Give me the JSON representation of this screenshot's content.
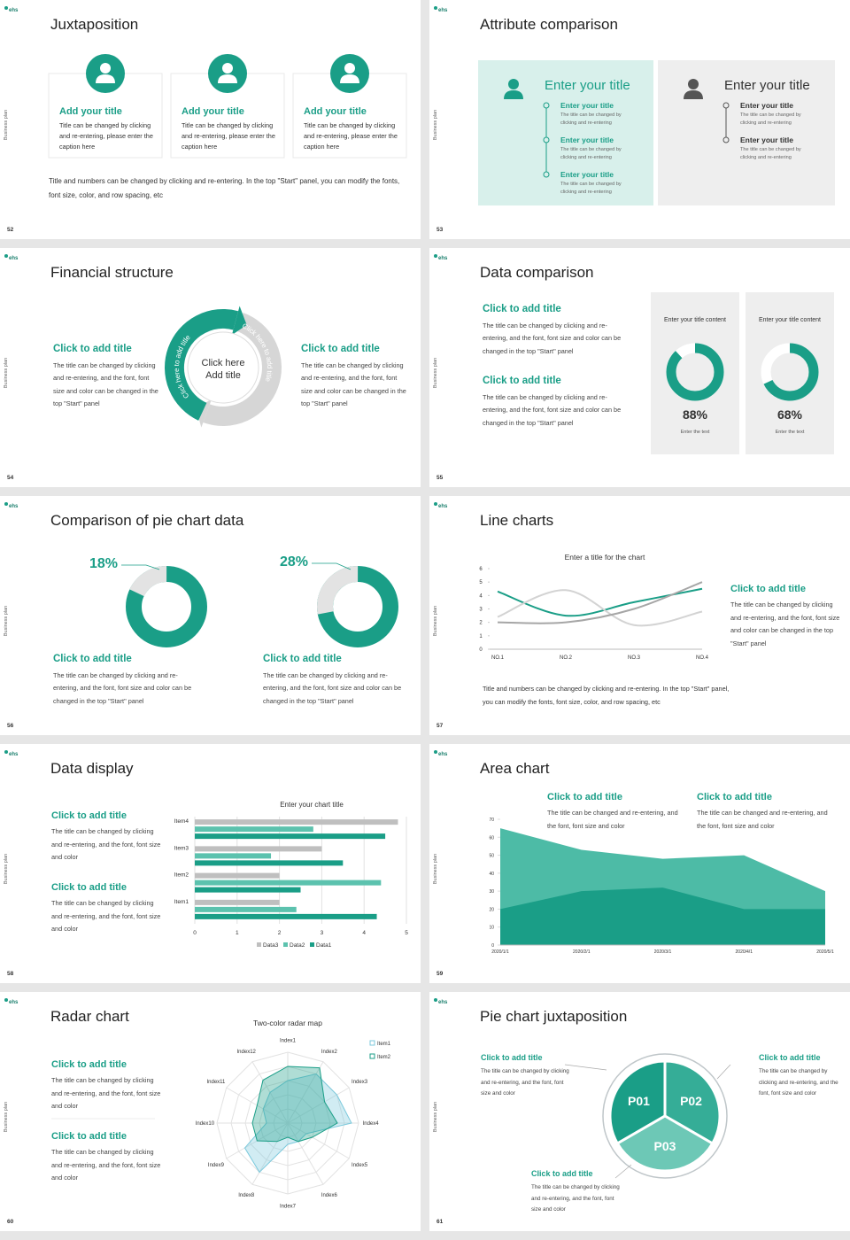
{
  "logo": "ehs",
  "side_label": "Business plan",
  "slides": [
    {
      "page": 52,
      "title": "Juxtaposition",
      "cards": [
        {
          "title": "Add your title",
          "text": "Title can be changed by clicking and re-entering, please enter the caption here"
        },
        {
          "title": "Add your title",
          "text": "Title can be changed by clicking and re-entering, please enter the caption here"
        },
        {
          "title": "Add your title",
          "text": "Title can be changed by clicking and re-entering, please enter the caption here"
        }
      ],
      "note": "Title and numbers can be changed by clicking and re-entering. In the top \"Start\" panel, you can modify the fonts, font size, color, and row spacing, etc"
    },
    {
      "page": 53,
      "title": "Attribute comparison",
      "panels": [
        {
          "title": "Enter your title",
          "items": [
            {
              "title": "Enter your title",
              "text": "The title can be changed by clicking and re-entering"
            },
            {
              "title": "Enter your title",
              "text": "The title can be changed by clicking and re-entering"
            },
            {
              "title": "Enter your title",
              "text": "The title can be changed by clicking and re-entering"
            }
          ]
        },
        {
          "title": "Enter your title",
          "items": [
            {
              "title": "Enter your title",
              "text": "The title can be changed by clicking and re-entering"
            },
            {
              "title": "Enter your title",
              "text": "The title can be changed by clicking and re-entering"
            }
          ]
        }
      ]
    },
    {
      "page": 54,
      "title": "Financial structure",
      "blocks": [
        {
          "title": "Click to add title",
          "text": "The title can be changed by clicking and re-entering, and the font, font size and color can be changed in the top \"Start\" panel"
        },
        {
          "title": "Click to add title",
          "text": "The title can be changed by clicking and re-entering, and the font, font size and color can be changed in the top \"Start\" panel"
        }
      ],
      "center": "Click here Add title",
      "arrow_labels": [
        "Click here to add title",
        "Click here to add title"
      ]
    },
    {
      "page": 55,
      "title": "Data comparison",
      "blocks": [
        {
          "title": "Click to add title",
          "text": "The title can be changed by clicking and re-entering, and the font, font size and color can be changed in the top \"Start\" panel"
        },
        {
          "title": "Click to add title",
          "text": "The title can be changed by clicking and re-entering, and the font, font size and color can be changed in the top \"Start\" panel"
        }
      ],
      "cards": [
        {
          "label": "Enter your title content",
          "value": 88,
          "value_label": "88%",
          "caption": "Enter the text"
        },
        {
          "label": "Enter your title content",
          "value": 68,
          "value_label": "68%",
          "caption": "Enter the text"
        }
      ]
    },
    {
      "page": 56,
      "title": "Comparison of pie chart data",
      "pies": [
        {
          "value": 18,
          "value_label": "18%"
        },
        {
          "value": 28,
          "value_label": "28%"
        }
      ],
      "blocks": [
        {
          "title": "Click to add title",
          "text": "The title can be changed by clicking and re-entering, and the font, font size and color can be changed in the top \"Start\" panel"
        },
        {
          "title": "Click to add title",
          "text": "The title can be changed by clicking and re-entering, and the font, font size and color can be changed in the top \"Start\" panel"
        }
      ]
    },
    {
      "page": 57,
      "title": "Line charts",
      "blocks": [
        {
          "title": "Click to add title",
          "text": "The title can be changed by clicking and re-entering, and the font, font size and color can be changed in the top \"Start\" panel"
        }
      ],
      "note": "Title and numbers can be changed by clicking and re-entering. In the top \"Start\" panel, you can modify the fonts, font size, color, and row spacing, etc"
    },
    {
      "page": 58,
      "title": "Data display",
      "blocks": [
        {
          "title": "Click to add title",
          "text": "The title can be changed by clicking and re-entering, and the font, font size and color"
        },
        {
          "title": "Click to add title",
          "text": "The title can be changed by clicking and re-entering, and the font, font size and color"
        }
      ]
    },
    {
      "page": 59,
      "title": "Area chart",
      "blocks": [
        {
          "title": "Click to add title",
          "text": "The title can be changed and re-entering, and the font, font size and color"
        },
        {
          "title": "Click to add title",
          "text": "The title can be changed and re-entering, and the font, font size and color"
        }
      ]
    },
    {
      "page": 60,
      "title": "Radar chart",
      "blocks": [
        {
          "title": "Click to add title",
          "text": "The title can be changed by clicking and re-entering, and the font, font size and color"
        },
        {
          "title": "Click to add title",
          "text": "The title can be changed by clicking and re-entering, and the font, font size and color"
        }
      ]
    },
    {
      "page": 61,
      "title": "Pie chart juxtaposition",
      "segments": [
        "P01",
        "P02",
        "P03"
      ],
      "blocks": [
        {
          "title": "Click to add title",
          "text": "The title can be changed by clicking and re-entering, and the font, font size and color"
        },
        {
          "title": "Click to add title",
          "text": "The title can be changed by clicking and re-entering, and the font, font size and color"
        },
        {
          "title": "Click to add title",
          "text": "The title can be changed by clicking and re-entering, and the font, font size and color"
        }
      ]
    }
  ],
  "chart_data": [
    {
      "type": "line",
      "title": "Enter a title for the chart",
      "categories": [
        "NO.1",
        "NO.2",
        "NO.3",
        "NO.4"
      ],
      "ylim": [
        0,
        6
      ],
      "yticks": [
        0,
        1,
        2,
        3,
        4,
        5,
        6
      ],
      "series": [
        {
          "color": "#1a9e87",
          "values": [
            4.3,
            2.5,
            3.5,
            4.5
          ]
        },
        {
          "color": "#d3d3d3",
          "values": [
            2.4,
            4.4,
            1.8,
            2.8
          ]
        },
        {
          "color": "#a6a6a6",
          "values": [
            2,
            2,
            3,
            5
          ]
        }
      ]
    },
    {
      "type": "bar",
      "orientation": "horizontal",
      "title": "Enter your chart title",
      "categories": [
        "Item1",
        "Item2",
        "Item3",
        "Item4"
      ],
      "xlim": [
        0,
        5
      ],
      "xticks": [
        0,
        1,
        2,
        3,
        4,
        5
      ],
      "grid": true,
      "legend": "bottom",
      "series": [
        {
          "name": "Data3",
          "color": "#bfbfbf",
          "values": [
            2,
            2,
            3,
            4.8
          ]
        },
        {
          "name": "Data2",
          "color": "#5cc2ae",
          "values": [
            2.4,
            4.4,
            1.8,
            2.8
          ]
        },
        {
          "name": "Data1",
          "color": "#1a9e87",
          "values": [
            4.3,
            2.5,
            3.5,
            4.5
          ]
        }
      ]
    },
    {
      "type": "area",
      "x": [
        "2020/1/1",
        "2020/2/1",
        "2020/3/1",
        "2020/4/1",
        "2020/5/1"
      ],
      "ylim": [
        0,
        70
      ],
      "yticks": [
        0,
        10,
        20,
        30,
        40,
        50,
        60,
        70
      ],
      "series": [
        {
          "color": "#4dbba6",
          "values": [
            65,
            53,
            48,
            50,
            30
          ]
        },
        {
          "color": "#1a9e87",
          "values": [
            20,
            30,
            32,
            20,
            20
          ]
        }
      ]
    },
    {
      "type": "radar",
      "title": "Two-color radar map",
      "categories": [
        "Index1",
        "Index2",
        "Index3",
        "Index4",
        "Index5",
        "Index6",
        "Index7",
        "Index8",
        "Index9",
        "Index10",
        "Index11",
        "Index12"
      ],
      "rlim": [
        0,
        10
      ],
      "rticks": [
        2,
        4,
        6,
        8,
        10
      ],
      "series": [
        {
          "name": "Item1",
          "color": "#7cc9dc",
          "values": [
            6,
            8,
            8,
            9,
            3,
            3,
            3,
            8,
            7,
            3,
            4,
            5
          ]
        },
        {
          "name": "Item2",
          "color": "#1a9e87",
          "values": [
            8,
            9,
            6,
            7,
            4,
            3,
            2,
            3,
            5,
            5,
            5,
            7
          ]
        }
      ]
    }
  ]
}
